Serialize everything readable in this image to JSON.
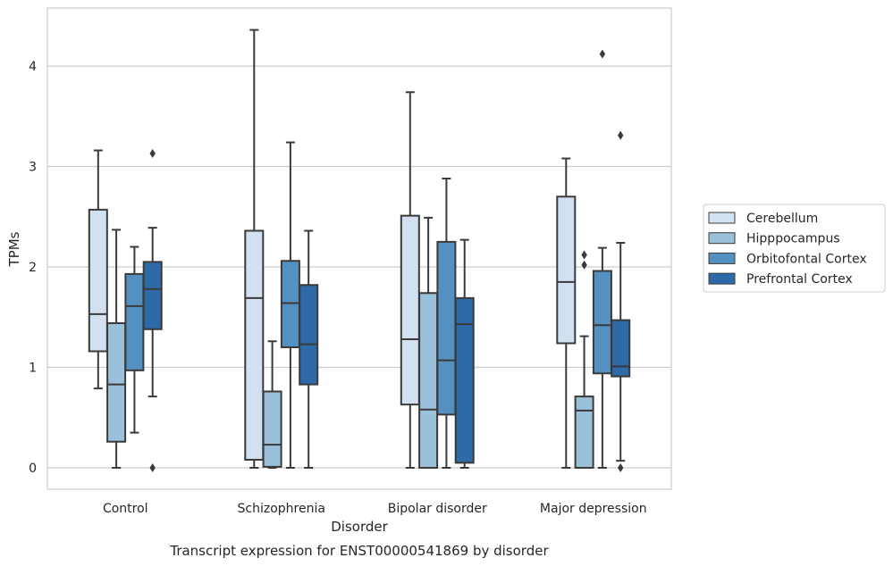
{
  "chart_data": {
    "type": "box",
    "title": "",
    "caption": "Transcript expression for ENST00000541869 by disorder",
    "xlabel": "Disorder",
    "ylabel": "TPMs",
    "ylim": [
      -0.2,
      4.6
    ],
    "yticks": [
      0,
      1,
      2,
      3,
      4
    ],
    "grid": "horizontal",
    "legend_position": "right",
    "categories": [
      "Control",
      "Schizophrenia",
      "Bipolar disorder",
      "Major depression"
    ],
    "series": [
      {
        "name": "Cerebellum",
        "color": "#d2e1f1",
        "boxes": [
          {
            "whislo": 0.79,
            "q1": 1.16,
            "med": 1.53,
            "q3": 2.57,
            "whishi": 3.16,
            "fliers": []
          },
          {
            "whislo": 0.0,
            "q1": 0.08,
            "med": 1.69,
            "q3": 2.36,
            "whishi": 4.36,
            "fliers": []
          },
          {
            "whislo": 0.0,
            "q1": 0.63,
            "med": 1.28,
            "q3": 2.51,
            "whishi": 3.74,
            "fliers": []
          },
          {
            "whislo": 0.0,
            "q1": 1.24,
            "med": 1.85,
            "q3": 2.7,
            "whishi": 3.08,
            "fliers": []
          }
        ]
      },
      {
        "name": "Hipppocampus",
        "color": "#9ac0da",
        "boxes": [
          {
            "whislo": 0.0,
            "q1": 0.26,
            "med": 0.83,
            "q3": 1.44,
            "whishi": 2.37,
            "fliers": []
          },
          {
            "whislo": 0.0,
            "q1": 0.01,
            "med": 0.23,
            "q3": 0.76,
            "whishi": 1.26,
            "fliers": []
          },
          {
            "whislo": 0.0,
            "q1": 0.0,
            "med": 0.58,
            "q3": 1.74,
            "whishi": 2.49,
            "fliers": []
          },
          {
            "whislo": 0.0,
            "q1": 0.0,
            "med": 0.57,
            "q3": 0.71,
            "whishi": 1.31,
            "fliers": [
              2.02,
              2.12
            ]
          }
        ]
      },
      {
        "name": "Orbitofontal Cortex",
        "color": "#5591c0",
        "boxes": [
          {
            "whislo": 0.35,
            "q1": 0.97,
            "med": 1.61,
            "q3": 1.93,
            "whishi": 2.2,
            "fliers": []
          },
          {
            "whislo": 0.0,
            "q1": 1.2,
            "med": 1.64,
            "q3": 2.06,
            "whishi": 3.24,
            "fliers": []
          },
          {
            "whislo": 0.0,
            "q1": 0.53,
            "med": 1.07,
            "q3": 2.25,
            "whishi": 2.88,
            "fliers": []
          },
          {
            "whislo": 0.0,
            "q1": 0.94,
            "med": 1.42,
            "q3": 1.96,
            "whishi": 2.19,
            "fliers": [
              4.12
            ]
          }
        ]
      },
      {
        "name": "Prefrontal Cortex",
        "color": "#2e6aa8",
        "boxes": [
          {
            "whislo": 0.71,
            "q1": 1.38,
            "med": 1.78,
            "q3": 2.05,
            "whishi": 2.39,
            "fliers": [
              3.13,
              0.0
            ]
          },
          {
            "whislo": 0.0,
            "q1": 0.83,
            "med": 1.23,
            "q3": 1.82,
            "whishi": 2.36,
            "fliers": []
          },
          {
            "whislo": 0.0,
            "q1": 0.05,
            "med": 1.43,
            "q3": 1.69,
            "whishi": 2.27,
            "fliers": []
          },
          {
            "whislo": 0.07,
            "q1": 0.91,
            "med": 1.01,
            "q3": 1.47,
            "whishi": 2.24,
            "fliers": [
              3.31,
              0.0
            ]
          }
        ]
      }
    ]
  }
}
